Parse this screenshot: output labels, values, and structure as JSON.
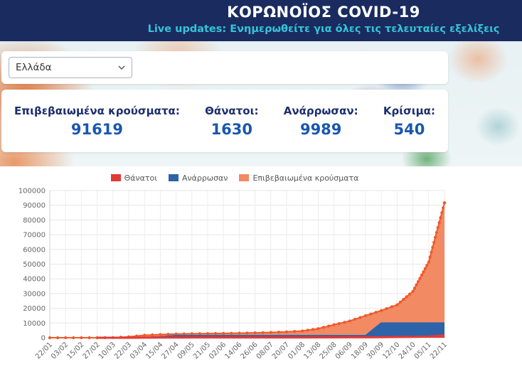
{
  "header": {
    "title": "ΚΟΡΩΝΟΪΟΣ COVID-19",
    "subtitle": "Live updates: Ενημερωθείτε για όλες τις τελευταίες εξελίξεις"
  },
  "filters": {
    "country_selected": "Ελλάδα"
  },
  "stats": [
    {
      "label": "Επιβεβαιωμένα κρούσματα:",
      "value": "91619"
    },
    {
      "label": "Θάνατοι:",
      "value": "1630"
    },
    {
      "label": "Ανάρρωσαν:",
      "value": "9989"
    },
    {
      "label": "Κρίσιμα:",
      "value": "540"
    }
  ],
  "colors": {
    "header_bg": "#1a2b5f",
    "accent_cyan": "#35c4d8",
    "stat_label": "#1b2f6e",
    "stat_value": "#1a57ad",
    "deaths": "#e53935",
    "recovered": "#2d63a8",
    "confirmed_line": "#ee5a2c",
    "confirmed_fill": "#f28a63"
  },
  "chart_data": {
    "type": "line",
    "title": "",
    "xlabel": "",
    "ylabel": "",
    "ylim": [
      0,
      100000
    ],
    "yticks": [
      0,
      10000,
      20000,
      30000,
      40000,
      50000,
      60000,
      70000,
      80000,
      90000,
      100000
    ],
    "grid": true,
    "legend_position": "top",
    "x": [
      "22/01",
      "03/02",
      "15/02",
      "27/02",
      "10/03",
      "22/03",
      "03/04",
      "15/04",
      "27/04",
      "09/05",
      "21/05",
      "02/06",
      "14/06",
      "26/06",
      "08/07",
      "20/07",
      "01/08",
      "13/08",
      "25/08",
      "06/09",
      "18/09",
      "30/09",
      "12/10",
      "24/10",
      "05/11",
      "22/11"
    ],
    "series": [
      {
        "name": "Θάνατοι",
        "color": "#e53935",
        "fill": "#e53935",
        "width": 3,
        "draw_from": 3,
        "dots": false,
        "values": [
          0,
          0,
          0,
          0,
          0,
          15,
          68,
          102,
          136,
          151,
          169,
          179,
          185,
          191,
          193,
          201,
          208,
          223,
          245,
          278,
          331,
          391,
          482,
          603,
          784,
          1630
        ]
      },
      {
        "name": "Ανάρρωσαν",
        "color": "#2d63a8",
        "fill": "#2d63a8",
        "width": 2,
        "draw_from": 5,
        "dots": false,
        "values": [
          0,
          0,
          0,
          0,
          0,
          30,
          269,
          577,
          1374,
          1374,
          1374,
          1374,
          1374,
          1374,
          1374,
          1374,
          1374,
          1374,
          1374,
          1374,
          1374,
          9989,
          9989,
          9989,
          9989,
          9989
        ]
      },
      {
        "name": "Επιβεβαιωμένα κρούσματα",
        "color": "#ee5a2c",
        "fill": "#f28a63",
        "width": 2,
        "draw_from": 0,
        "dots": true,
        "values": [
          0,
          0,
          0,
          3,
          89,
          624,
          1673,
          2192,
          2534,
          2710,
          2853,
          2941,
          3134,
          3343,
          3622,
          4007,
          4587,
          6177,
          8819,
          11386,
          14978,
          18475,
          22358,
          31496,
          51414,
          91619
        ]
      }
    ]
  }
}
